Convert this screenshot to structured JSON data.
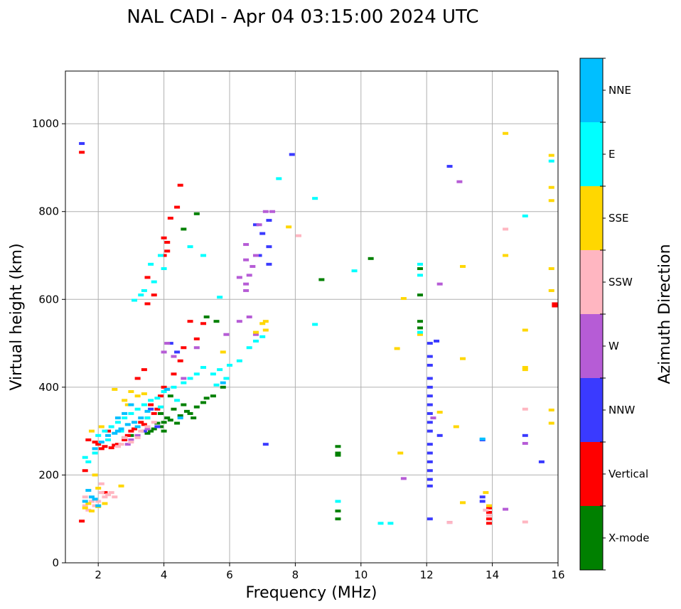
{
  "chart_data": {
    "type": "scatter",
    "title": "NAL CADI - Apr 04 03:15:00 2024 UTC",
    "xlabel": "Frequency (MHz)",
    "ylabel": "Virtual height (km)",
    "xlim": [
      1,
      16
    ],
    "ylim": [
      0,
      1120
    ],
    "xticks": [
      2,
      4,
      6,
      8,
      10,
      12,
      14,
      16
    ],
    "yticks": [
      0,
      200,
      400,
      600,
      800,
      1000
    ],
    "grid": true,
    "colorbar": {
      "label": "Azimuth Direction",
      "categories": [
        {
          "name": "X-mode",
          "color": "#008000"
        },
        {
          "name": "Vertical",
          "color": "#ff0000"
        },
        {
          "name": "NNW",
          "color": "#3a3aff"
        },
        {
          "name": "W",
          "color": "#b65cd6"
        },
        {
          "name": "SSW",
          "color": "#ffb6c1"
        },
        {
          "name": "SSE",
          "color": "#ffd700"
        },
        {
          "name": "E",
          "color": "#00ffff"
        },
        {
          "name": "NNE",
          "color": "#00bfff"
        }
      ]
    },
    "series": [
      {
        "name": "X-mode",
        "points": [
          [
            4.0,
            320
          ],
          [
            4.1,
            330
          ],
          [
            3.9,
            310
          ],
          [
            4.2,
            325
          ],
          [
            4.5,
            335
          ],
          [
            4.3,
            350
          ],
          [
            4.8,
            340
          ],
          [
            5.0,
            355
          ],
          [
            5.2,
            365
          ],
          [
            4.6,
            360
          ],
          [
            3.8,
            318
          ],
          [
            4.4,
            318
          ],
          [
            3.6,
            300
          ],
          [
            3.7,
            305
          ],
          [
            5.5,
            380
          ],
          [
            5.8,
            400
          ],
          [
            4.9,
            330
          ],
          [
            4.7,
            345
          ],
          [
            5.3,
            375
          ],
          [
            3.5,
            295
          ],
          [
            4.0,
            300
          ],
          [
            3.9,
            340
          ],
          [
            4.6,
            760
          ],
          [
            5.0,
            795
          ],
          [
            9.3,
            265
          ],
          [
            9.3,
            250
          ],
          [
            9.3,
            245
          ],
          [
            9.3,
            118
          ],
          [
            9.3,
            100
          ],
          [
            8.8,
            645
          ],
          [
            10.3,
            693
          ],
          [
            11.8,
            670
          ],
          [
            11.8,
            610
          ],
          [
            11.8,
            550
          ],
          [
            11.8,
            535
          ],
          [
            5.6,
            550
          ],
          [
            5.3,
            560
          ],
          [
            4.2,
            380
          ],
          [
            3.0,
            290
          ],
          [
            2.8,
            285
          ]
        ]
      },
      {
        "name": "Vertical",
        "points": [
          [
            1.7,
            280
          ],
          [
            1.9,
            275
          ],
          [
            2.0,
            270
          ],
          [
            2.2,
            265
          ],
          [
            2.5,
            268
          ],
          [
            2.8,
            280
          ],
          [
            3.0,
            300
          ],
          [
            3.3,
            320
          ],
          [
            3.5,
            330
          ],
          [
            3.7,
            340
          ],
          [
            2.1,
            260
          ],
          [
            2.4,
            262
          ],
          [
            2.6,
            270
          ],
          [
            2.9,
            290
          ],
          [
            3.1,
            305
          ],
          [
            3.4,
            315
          ],
          [
            3.6,
            360
          ],
          [
            3.9,
            380
          ],
          [
            4.0,
            400
          ],
          [
            4.3,
            430
          ],
          [
            4.5,
            460
          ],
          [
            4.6,
            490
          ],
          [
            5.0,
            510
          ],
          [
            5.2,
            545
          ],
          [
            3.5,
            590
          ],
          [
            3.7,
            610
          ],
          [
            3.5,
            650
          ],
          [
            4.0,
            700
          ],
          [
            4.1,
            730
          ],
          [
            4.0,
            740
          ],
          [
            4.2,
            785
          ],
          [
            4.4,
            810
          ],
          [
            4.5,
            860
          ],
          [
            3.2,
            420
          ],
          [
            3.4,
            440
          ],
          [
            1.6,
            210
          ],
          [
            2.2,
            160
          ],
          [
            1.5,
            95
          ],
          [
            1.5,
            935
          ],
          [
            2.3,
            300
          ],
          [
            3.8,
            350
          ],
          [
            4.8,
            550
          ],
          [
            4.1,
            710
          ],
          [
            13.9,
            125
          ],
          [
            13.9,
            115
          ],
          [
            13.9,
            100
          ],
          [
            13.9,
            90
          ],
          [
            15.9,
            585
          ],
          [
            15.9,
            590
          ]
        ]
      },
      {
        "name": "NNW",
        "points": [
          [
            12.1,
            500
          ],
          [
            12.1,
            470
          ],
          [
            12.1,
            450
          ],
          [
            12.1,
            420
          ],
          [
            12.1,
            400
          ],
          [
            12.1,
            380
          ],
          [
            12.1,
            360
          ],
          [
            12.1,
            340
          ],
          [
            12.1,
            320
          ],
          [
            12.1,
            300
          ],
          [
            12.1,
            270
          ],
          [
            12.1,
            250
          ],
          [
            12.1,
            230
          ],
          [
            12.1,
            210
          ],
          [
            12.1,
            190
          ],
          [
            12.1,
            175
          ],
          [
            12.1,
            100
          ],
          [
            12.3,
            505
          ],
          [
            12.4,
            290
          ],
          [
            12.7,
            903
          ],
          [
            13.7,
            280
          ],
          [
            13.7,
            150
          ],
          [
            13.7,
            140
          ],
          [
            15.5,
            230
          ],
          [
            15.0,
            290
          ],
          [
            7.1,
            270
          ],
          [
            7.9,
            930
          ],
          [
            6.8,
            770
          ],
          [
            7.0,
            750
          ],
          [
            7.2,
            780
          ],
          [
            7.2,
            720
          ],
          [
            6.9,
            700
          ],
          [
            7.2,
            680
          ],
          [
            1.5,
            955
          ],
          [
            4.2,
            500
          ],
          [
            4.4,
            480
          ],
          [
            3.8,
            310
          ],
          [
            3.4,
            300
          ],
          [
            3.6,
            350
          ]
        ]
      },
      {
        "name": "W",
        "points": [
          [
            6.5,
            620
          ],
          [
            6.5,
            635
          ],
          [
            6.6,
            655
          ],
          [
            6.7,
            675
          ],
          [
            6.8,
            700
          ],
          [
            6.5,
            690
          ],
          [
            6.3,
            650
          ],
          [
            6.9,
            770
          ],
          [
            7.1,
            800
          ],
          [
            7.3,
            800
          ],
          [
            6.5,
            725
          ],
          [
            6.8,
            520
          ],
          [
            6.3,
            550
          ],
          [
            6.6,
            560
          ],
          [
            5.9,
            520
          ],
          [
            4.0,
            480
          ],
          [
            4.1,
            500
          ],
          [
            3.0,
            280
          ],
          [
            3.2,
            290
          ],
          [
            3.5,
            305
          ],
          [
            2.9,
            270
          ],
          [
            4.3,
            470
          ],
          [
            12.4,
            635
          ],
          [
            12.7,
            92
          ],
          [
            13.0,
            868
          ],
          [
            12.2,
            330
          ],
          [
            14.4,
            122
          ],
          [
            15.0,
            272
          ],
          [
            11.3,
            192
          ],
          [
            5.0,
            490
          ],
          [
            4.6,
            420
          ]
        ]
      },
      {
        "name": "SSW",
        "points": [
          [
            1.6,
            150
          ],
          [
            1.8,
            140
          ],
          [
            1.9,
            130
          ],
          [
            2.1,
            160
          ],
          [
            2.3,
            155
          ],
          [
            2.5,
            150
          ],
          [
            1.7,
            120
          ],
          [
            2.1,
            180
          ],
          [
            2.0,
            140
          ],
          [
            2.4,
            160
          ],
          [
            2.7,
            270
          ],
          [
            3.0,
            275
          ],
          [
            3.2,
            285
          ],
          [
            2.8,
            285
          ],
          [
            2.6,
            265
          ],
          [
            3.3,
            300
          ],
          [
            3.5,
            310
          ],
          [
            3.7,
            320
          ],
          [
            14.4,
            760
          ],
          [
            15.0,
            350
          ],
          [
            15.0,
            93
          ],
          [
            13.9,
            108
          ],
          [
            13.8,
            120
          ],
          [
            8.1,
            745
          ],
          [
            12.7,
            92
          ],
          [
            1.6,
            130
          ],
          [
            2.2,
            150
          ]
        ]
      },
      {
        "name": "SSE",
        "points": [
          [
            1.6,
            125
          ],
          [
            1.8,
            118
          ],
          [
            2.0,
            128
          ],
          [
            1.7,
            135
          ],
          [
            2.0,
            170
          ],
          [
            2.2,
            135
          ],
          [
            2.7,
            175
          ],
          [
            2.8,
            370
          ],
          [
            3.0,
            390
          ],
          [
            3.2,
            380
          ],
          [
            3.4,
            385
          ],
          [
            2.5,
            395
          ],
          [
            2.9,
            360
          ],
          [
            1.8,
            300
          ],
          [
            2.1,
            310
          ],
          [
            7.1,
            530
          ],
          [
            7.0,
            545
          ],
          [
            6.8,
            525
          ],
          [
            7.1,
            550
          ],
          [
            5.8,
            480
          ],
          [
            11.1,
            488
          ],
          [
            11.2,
            250
          ],
          [
            11.3,
            602
          ],
          [
            11.8,
            520
          ],
          [
            12.4,
            343
          ],
          [
            12.9,
            310
          ],
          [
            13.1,
            465
          ],
          [
            13.1,
            675
          ],
          [
            13.1,
            137
          ],
          [
            13.8,
            160
          ],
          [
            13.9,
            130
          ],
          [
            14.4,
            700
          ],
          [
            14.4,
            978
          ],
          [
            15.0,
            530
          ],
          [
            15.0,
            445
          ],
          [
            15.0,
            440
          ],
          [
            15.8,
            928
          ],
          [
            15.8,
            855
          ],
          [
            15.8,
            825
          ],
          [
            15.8,
            670
          ],
          [
            15.8,
            620
          ],
          [
            15.8,
            348
          ],
          [
            15.8,
            318
          ],
          [
            7.8,
            765
          ],
          [
            1.9,
            200
          ]
        ]
      },
      {
        "name": "E",
        "points": [
          [
            1.7,
            230
          ],
          [
            1.9,
            250
          ],
          [
            2.0,
            290
          ],
          [
            2.2,
            300
          ],
          [
            2.4,
            310
          ],
          [
            2.6,
            320
          ],
          [
            2.8,
            330
          ],
          [
            3.0,
            340
          ],
          [
            3.2,
            350
          ],
          [
            3.4,
            360
          ],
          [
            3.6,
            370
          ],
          [
            3.8,
            375
          ],
          [
            4.0,
            390
          ],
          [
            4.3,
            400
          ],
          [
            4.6,
            410
          ],
          [
            4.8,
            420
          ],
          [
            5.0,
            430
          ],
          [
            5.2,
            445
          ],
          [
            5.5,
            430
          ],
          [
            5.7,
            440
          ],
          [
            6.0,
            450
          ],
          [
            6.3,
            460
          ],
          [
            6.6,
            490
          ],
          [
            6.8,
            505
          ],
          [
            7.0,
            515
          ],
          [
            5.9,
            420
          ],
          [
            5.6,
            405
          ],
          [
            3.1,
            598
          ],
          [
            3.3,
            610
          ],
          [
            3.4,
            620
          ],
          [
            3.7,
            640
          ],
          [
            3.6,
            680
          ],
          [
            3.9,
            700
          ],
          [
            4.0,
            670
          ],
          [
            4.8,
            720
          ],
          [
            5.2,
            700
          ],
          [
            5.7,
            605
          ],
          [
            7.5,
            875
          ],
          [
            8.6,
            830
          ],
          [
            8.6,
            543
          ],
          [
            9.3,
            140
          ],
          [
            9.8,
            665
          ],
          [
            10.6,
            90
          ],
          [
            10.9,
            90
          ],
          [
            11.8,
            680
          ],
          [
            11.8,
            655
          ],
          [
            11.8,
            525
          ],
          [
            15.0,
            790
          ],
          [
            15.8,
            915
          ],
          [
            2.3,
            280
          ],
          [
            2.7,
            300
          ],
          [
            3.5,
            330
          ],
          [
            1.6,
            240
          ],
          [
            3.9,
            355
          ],
          [
            4.4,
            370
          ]
        ]
      },
      {
        "name": "NNE",
        "points": [
          [
            2.3,
            290
          ],
          [
            2.5,
            295
          ],
          [
            2.7,
            305
          ],
          [
            2.9,
            315
          ],
          [
            3.1,
            320
          ],
          [
            3.3,
            330
          ],
          [
            3.5,
            345
          ],
          [
            2.6,
            330
          ],
          [
            2.8,
            340
          ],
          [
            3.0,
            360
          ],
          [
            1.9,
            260
          ],
          [
            2.1,
            275
          ],
          [
            1.7,
            165
          ],
          [
            1.8,
            150
          ],
          [
            2.0,
            130
          ],
          [
            1.6,
            140
          ],
          [
            1.9,
            145
          ],
          [
            2.6,
            300
          ],
          [
            3.2,
            310
          ],
          [
            4.1,
            395
          ],
          [
            13.7,
            282
          ],
          [
            5.8,
            410
          ],
          [
            4.5,
            330
          ]
        ]
      }
    ]
  }
}
